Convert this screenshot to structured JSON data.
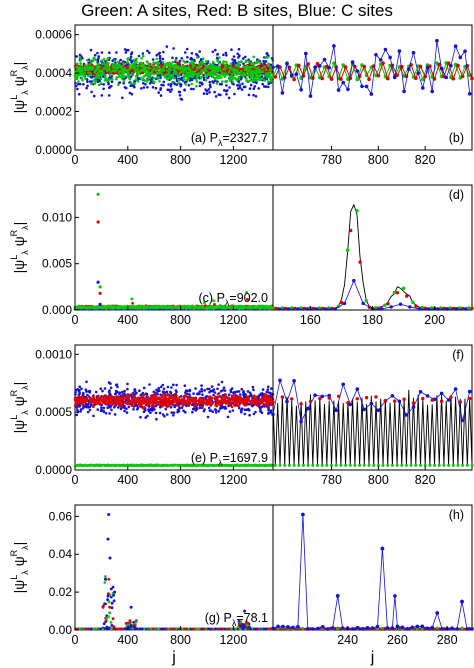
{
  "title": "Green: A sites, Red: B sites, Blue: C sites",
  "colors": {
    "A": "#00cc00",
    "B": "#e00000",
    "C": "#1010e0",
    "black": "#000000"
  },
  "shared_ylabel": "|ψ^L_λ ψ^R_λ|",
  "chart_data": [
    {
      "row": 1,
      "panel": "left",
      "type": "scatter",
      "annotation": "(a) P_λ=2327.7",
      "xlabel": "",
      "ylabel": "|ψ^L_λ ψ^R_λ|",
      "xlim": [
        0,
        1500
      ],
      "xticks": [
        0,
        400,
        800,
        1200
      ],
      "ylim": [
        0,
        0.00065
      ],
      "yticks": [
        "0.0000",
        "0.0002",
        "0.0004",
        "0.0006"
      ],
      "ytick_values": [
        0,
        0.0002,
        0.0004,
        0.0006
      ],
      "series": [
        {
          "site": "A",
          "color": "#00cc00",
          "mean": 0.00041,
          "spread": 9e-05
        },
        {
          "site": "B",
          "color": "#e00000",
          "mean": 0.00042,
          "spread": 4e-05
        },
        {
          "site": "C",
          "color": "#1010e0",
          "mean": 0.0004,
          "spread": 0.00016
        }
      ]
    },
    {
      "row": 1,
      "panel": "right",
      "type": "line",
      "annotation": "(b)",
      "xlim": [
        755,
        840
      ],
      "xticks": [
        780,
        800,
        820
      ],
      "ylim": [
        0,
        0.00065
      ],
      "series": [
        {
          "site": "A",
          "color": "#00cc00",
          "mean": 0.00041,
          "spread": 4e-05
        },
        {
          "site": "B",
          "color": "#e00000",
          "mean": 0.00041,
          "spread": 4e-05
        },
        {
          "site": "C",
          "color": "#1010e0",
          "mean": 0.00042,
          "spread": 0.00016
        }
      ]
    },
    {
      "row": 2,
      "panel": "left",
      "type": "scatter",
      "annotation": "(c) P_λ=902.0",
      "xlim": [
        0,
        1500
      ],
      "xticks": [
        0,
        400,
        800,
        1200
      ],
      "ylim": [
        0,
        0.0135
      ],
      "yticks": [
        "0.000",
        "0.005",
        "0.010"
      ],
      "ytick_values": [
        0,
        0.005,
        0.01
      ],
      "peaks": [
        {
          "x": 175,
          "A": 0.0125,
          "B": 0.0095,
          "C": 0.003
        },
        {
          "x": 190,
          "A": 0.0025,
          "B": 0.0018,
          "C": 0.0006
        }
      ],
      "series": [
        {
          "site": "A",
          "color": "#00cc00",
          "mean": 0.0003,
          "spread": 0.0002
        },
        {
          "site": "B",
          "color": "#e00000",
          "mean": 0.0003,
          "spread": 0.0002
        },
        {
          "site": "C",
          "color": "#1010e0",
          "mean": 0.0001,
          "spread": 0.0001
        }
      ]
    },
    {
      "row": 2,
      "panel": "right",
      "type": "line",
      "annotation": "(d)",
      "xlim": [
        148,
        212
      ],
      "xticks": [
        160,
        180,
        200
      ],
      "ylim": [
        0,
        0.0135
      ],
      "peaks": [
        {
          "x": 174,
          "A": 0.0125,
          "B": 0.0095,
          "C": 0.003
        },
        {
          "x": 190,
          "A": 0.0025,
          "B": 0.0018,
          "C": 0.0006
        }
      ]
    },
    {
      "row": 3,
      "panel": "left",
      "type": "scatter",
      "annotation": "(e) P_λ=1697.9",
      "xlim": [
        0,
        1500
      ],
      "xticks": [
        0,
        400,
        800,
        1200
      ],
      "ylim": [
        0,
        0.00108
      ],
      "yticks": [
        "0.0000",
        "0.0005",
        "0.0010"
      ],
      "ytick_values": [
        0,
        0.0005,
        0.001
      ],
      "series": [
        {
          "site": "A",
          "color": "#00cc00",
          "mean": 4e-05,
          "spread": 1e-05
        },
        {
          "site": "B",
          "color": "#e00000",
          "mean": 0.0006,
          "spread": 7e-05
        },
        {
          "site": "C",
          "color": "#1010e0",
          "mean": 0.0006,
          "spread": 0.00018
        }
      ]
    },
    {
      "row": 3,
      "panel": "right",
      "type": "line",
      "annotation": "(f)",
      "xlim": [
        755,
        840
      ],
      "xticks": [
        780,
        800,
        820
      ],
      "ylim": [
        0,
        0.00108
      ],
      "series": [
        {
          "site": "A",
          "color": "#00cc00",
          "mean": 4e-05,
          "spread": 1e-05
        },
        {
          "site": "B",
          "color": "#e00000",
          "mean": 0.0006,
          "spread": 7e-05
        },
        {
          "site": "C",
          "color": "#1010e0",
          "mean": 0.0006,
          "spread": 0.00018
        }
      ]
    },
    {
      "row": 4,
      "panel": "left",
      "type": "scatter",
      "annotation": "(g) P_λ=78.1",
      "xlabel": "j",
      "xlim": [
        0,
        1500
      ],
      "xticks": [
        0,
        400,
        800,
        1200
      ],
      "ylim": [
        0,
        0.066
      ],
      "yticks": [
        "0.00",
        "0.02",
        "0.04",
        "0.06"
      ],
      "ytick_values": [
        0,
        0.02,
        0.04,
        0.06
      ],
      "clusters": [
        {
          "x_from": 210,
          "x_to": 300,
          "max": 0.061
        },
        {
          "x_from": 380,
          "x_to": 470,
          "max": 0.012
        },
        {
          "x_from": 1240,
          "x_to": 1330,
          "max": 0.01
        }
      ]
    },
    {
      "row": 4,
      "panel": "right",
      "type": "line",
      "annotation": "(h)",
      "xlabel": "j",
      "xlim": [
        210,
        290
      ],
      "xticks": [
        240,
        260,
        280
      ],
      "ylim": [
        0,
        0.066
      ],
      "peaks": [
        {
          "x": 222,
          "C": 0.061
        },
        {
          "x": 236,
          "C": 0.018
        },
        {
          "x": 254,
          "C": 0.043
        },
        {
          "x": 259,
          "C": 0.018
        },
        {
          "x": 276,
          "C": 0.009
        },
        {
          "x": 286,
          "C": 0.015
        }
      ]
    }
  ]
}
